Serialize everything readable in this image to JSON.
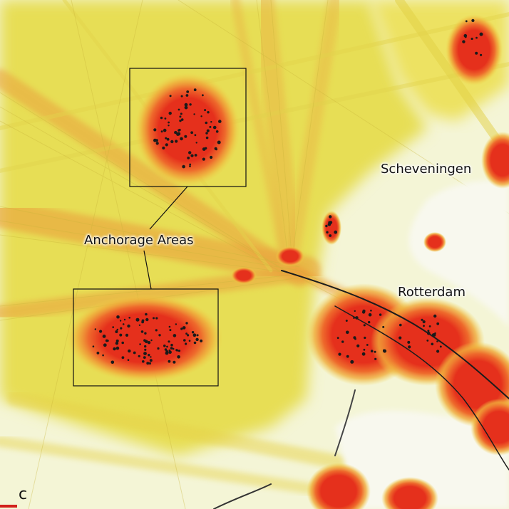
{
  "map": {
    "places": {
      "scheveningen": "Scheveningen",
      "rotterdam": "Rotterdam"
    },
    "annotation": {
      "anchorage_label": "Anchorage Areas"
    },
    "panel_letter": "c"
  },
  "colors": {
    "background_land": "#f4f5d6",
    "track_yellow": "#e8dc4a",
    "track_orange": "#e8a84a",
    "density_red": "#e8321e",
    "box_stroke": "#111111",
    "panel_mark": "#d2201b"
  }
}
